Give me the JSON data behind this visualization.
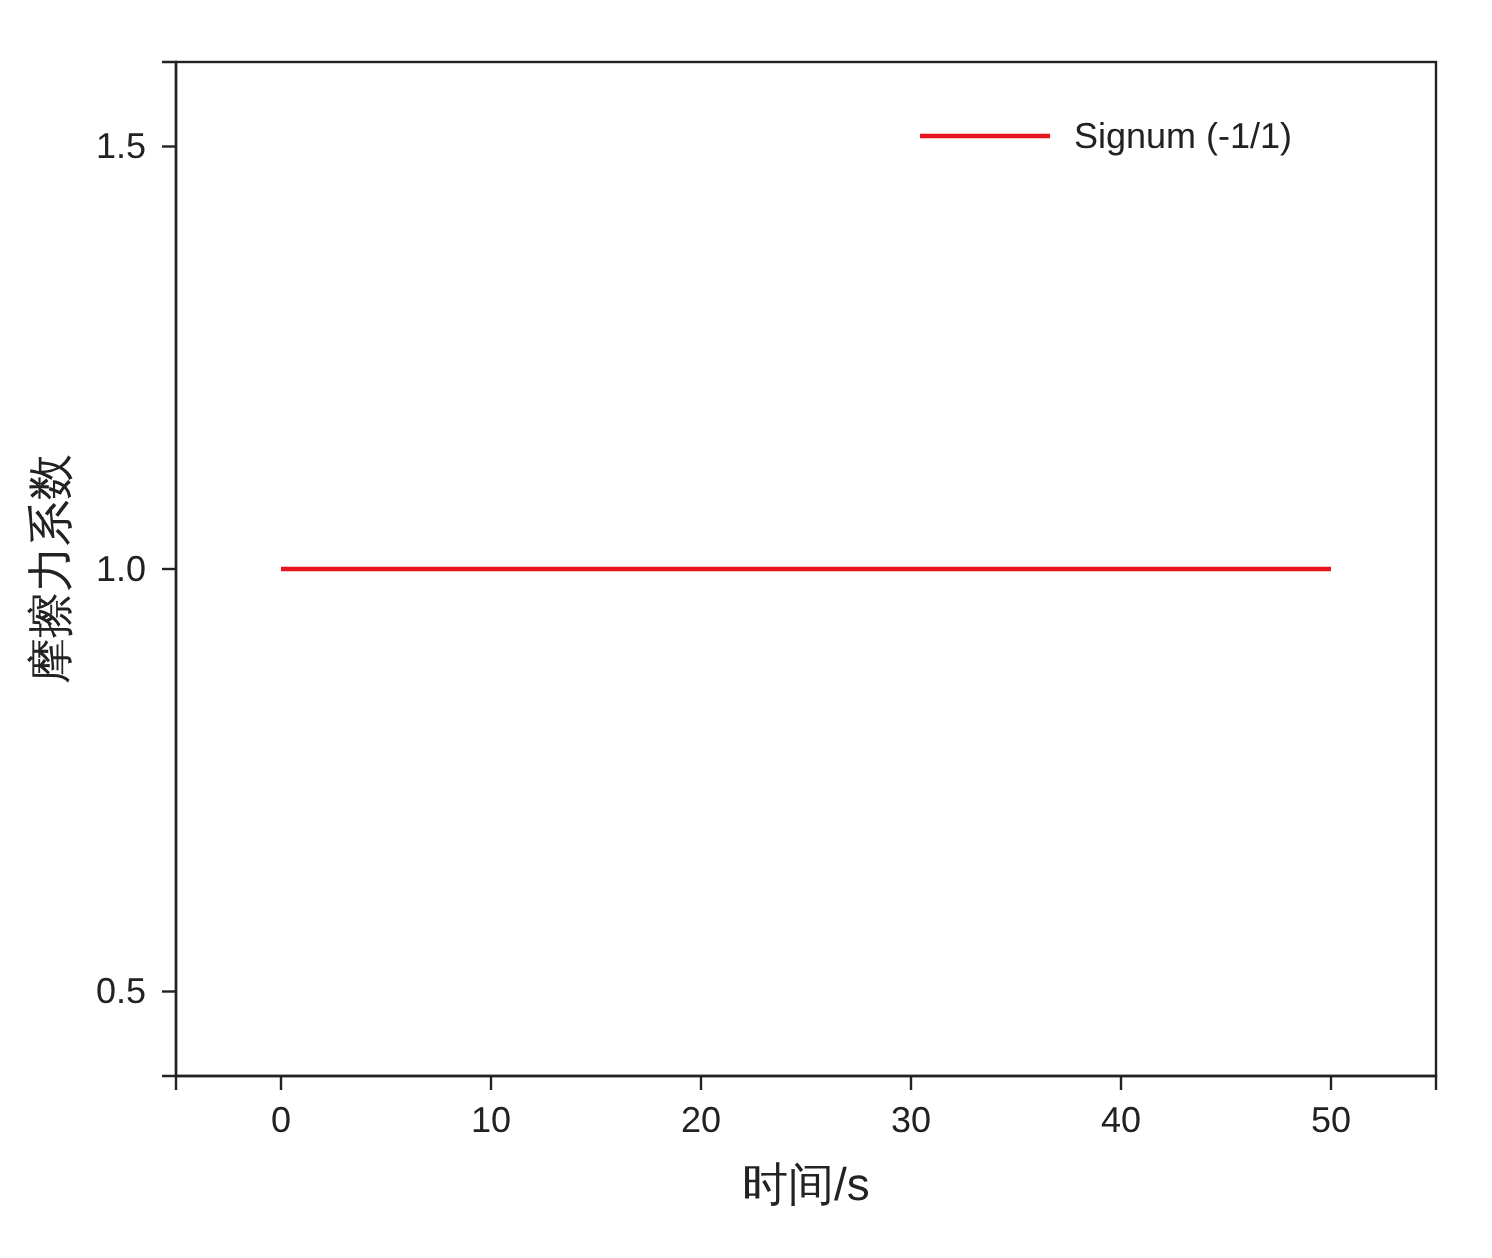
{
  "chart_data": {
    "type": "line",
    "xlabel": "时间/s",
    "ylabel": "摩擦力系数",
    "x": [
      0,
      50
    ],
    "series": [
      {
        "name": "Signum (-1/1)",
        "color": "#e8141e",
        "values": [
          1,
          1
        ]
      }
    ],
    "xlim": [
      -5,
      55
    ],
    "xticks": [
      0,
      10,
      20,
      30,
      40,
      50
    ],
    "ylim": [
      0.4,
      1.6
    ],
    "yticks": [
      {
        "value": 0.5,
        "label": "0.5"
      },
      {
        "value": 1.0,
        "label": "1.0"
      },
      {
        "value": 1.5,
        "label": "1.5"
      }
    ],
    "grid": false,
    "legend": "top right",
    "marker": "none",
    "line_style": "solid"
  }
}
